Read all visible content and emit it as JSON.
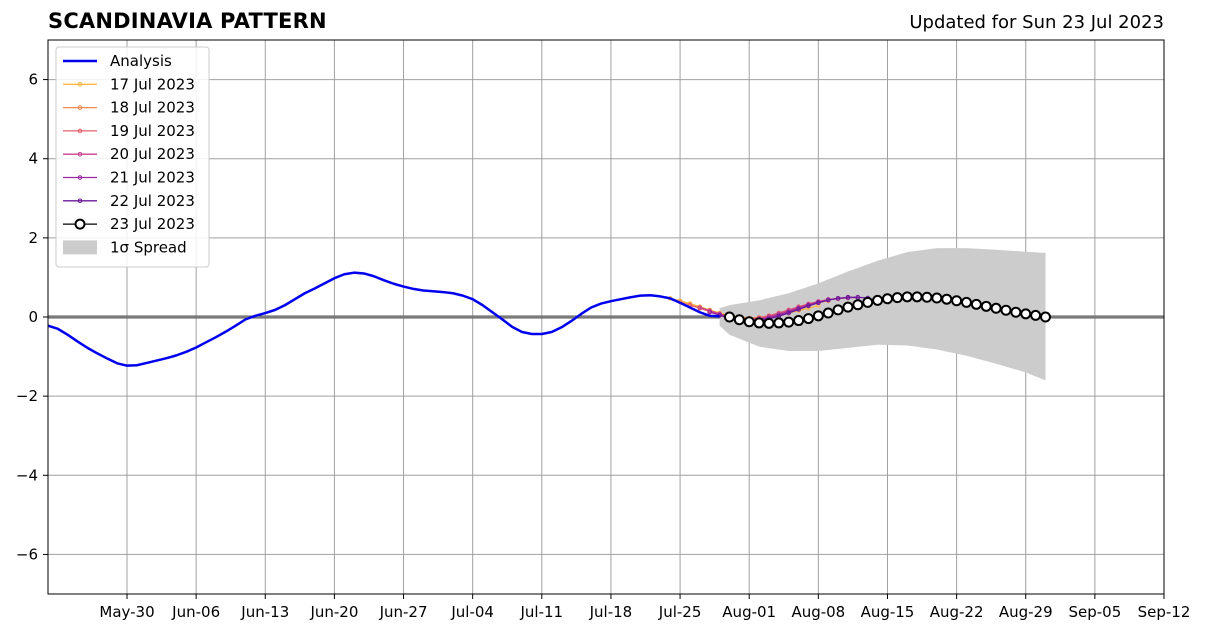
{
  "header": {
    "title": "SCANDINAVIA PATTERN",
    "updated": "Updated for Sun 23 Jul 2023"
  },
  "colors": {
    "analysis": "#0000ee",
    "spread": "#cccccc",
    "grid": "#a0a0a0",
    "zero_line": "#555555",
    "forecasts": [
      "#fdb746",
      "#f4894b",
      "#e3616a",
      "#c8418d",
      "#9a26a0",
      "#6a1a9a",
      "#000000"
    ]
  },
  "chart_data": {
    "type": "line",
    "title": "SCANDINAVIA PATTERN",
    "xlabel": "",
    "ylabel": "",
    "xlim": [
      "2023-05-22",
      "2023-09-12"
    ],
    "ylim": [
      -7,
      7
    ],
    "grid": true,
    "legend_position": "top-left",
    "x_ticks": [
      "May-30",
      "Jun-06",
      "Jun-13",
      "Jun-20",
      "Jun-27",
      "Jul-04",
      "Jul-11",
      "Jul-18",
      "Jul-25",
      "Aug-01",
      "Aug-08",
      "Aug-15",
      "Aug-22",
      "Aug-29",
      "Sep-05",
      "Sep-12"
    ],
    "x_tick_dates": [
      "2023-05-30",
      "2023-06-06",
      "2023-06-13",
      "2023-06-20",
      "2023-06-27",
      "2023-07-04",
      "2023-07-11",
      "2023-07-18",
      "2023-07-25",
      "2023-08-01",
      "2023-08-08",
      "2023-08-15",
      "2023-08-22",
      "2023-08-29",
      "2023-09-05",
      "2023-09-12"
    ],
    "y_ticks": [
      -6,
      -4,
      -2,
      0,
      2,
      4,
      6
    ],
    "y_tick_labels": [
      "−6",
      "−4",
      "−2",
      "0",
      "2",
      "4",
      "6"
    ],
    "analysis": {
      "name": "Analysis",
      "points": [
        [
          "2023-05-22",
          -0.22
        ],
        [
          "2023-05-23",
          -0.3
        ],
        [
          "2023-05-24",
          -0.45
        ],
        [
          "2023-05-25",
          -0.62
        ],
        [
          "2023-05-26",
          -0.78
        ],
        [
          "2023-05-27",
          -0.92
        ],
        [
          "2023-05-28",
          -1.05
        ],
        [
          "2023-05-29",
          -1.17
        ],
        [
          "2023-05-30",
          -1.23
        ],
        [
          "2023-05-31",
          -1.22
        ],
        [
          "2023-06-01",
          -1.16
        ],
        [
          "2023-06-02",
          -1.1
        ],
        [
          "2023-06-03",
          -1.04
        ],
        [
          "2023-06-04",
          -0.97
        ],
        [
          "2023-06-05",
          -0.88
        ],
        [
          "2023-06-06",
          -0.77
        ],
        [
          "2023-06-07",
          -0.64
        ],
        [
          "2023-06-08",
          -0.51
        ],
        [
          "2023-06-09",
          -0.37
        ],
        [
          "2023-06-10",
          -0.22
        ],
        [
          "2023-06-11",
          -0.06
        ],
        [
          "2023-06-12",
          0.03
        ],
        [
          "2023-06-13",
          0.1
        ],
        [
          "2023-06-14",
          0.18
        ],
        [
          "2023-06-15",
          0.3
        ],
        [
          "2023-06-16",
          0.45
        ],
        [
          "2023-06-17",
          0.6
        ],
        [
          "2023-06-18",
          0.72
        ],
        [
          "2023-06-19",
          0.85
        ],
        [
          "2023-06-20",
          0.98
        ],
        [
          "2023-06-21",
          1.08
        ],
        [
          "2023-06-22",
          1.12
        ],
        [
          "2023-06-23",
          1.1
        ],
        [
          "2023-06-24",
          1.03
        ],
        [
          "2023-06-25",
          0.93
        ],
        [
          "2023-06-26",
          0.84
        ],
        [
          "2023-06-27",
          0.77
        ],
        [
          "2023-06-28",
          0.71
        ],
        [
          "2023-06-29",
          0.67
        ],
        [
          "2023-06-30",
          0.65
        ],
        [
          "2023-07-01",
          0.63
        ],
        [
          "2023-07-02",
          0.6
        ],
        [
          "2023-07-03",
          0.54
        ],
        [
          "2023-07-04",
          0.45
        ],
        [
          "2023-07-05",
          0.3
        ],
        [
          "2023-07-06",
          0.12
        ],
        [
          "2023-07-07",
          -0.06
        ],
        [
          "2023-07-08",
          -0.25
        ],
        [
          "2023-07-09",
          -0.38
        ],
        [
          "2023-07-10",
          -0.43
        ],
        [
          "2023-07-11",
          -0.43
        ],
        [
          "2023-07-12",
          -0.38
        ],
        [
          "2023-07-13",
          -0.26
        ],
        [
          "2023-07-14",
          -0.1
        ],
        [
          "2023-07-15",
          0.08
        ],
        [
          "2023-07-16",
          0.24
        ],
        [
          "2023-07-17",
          0.34
        ],
        [
          "2023-07-18",
          0.4
        ],
        [
          "2023-07-19",
          0.45
        ],
        [
          "2023-07-20",
          0.5
        ],
        [
          "2023-07-21",
          0.54
        ],
        [
          "2023-07-22",
          0.55
        ],
        [
          "2023-07-23",
          0.52
        ],
        [
          "2023-07-24",
          0.47
        ],
        [
          "2023-07-25",
          0.36
        ],
        [
          "2023-07-26",
          0.24
        ],
        [
          "2023-07-27",
          0.12
        ],
        [
          "2023-07-28",
          0.03
        ],
        [
          "2023-07-29",
          0.02
        ]
      ]
    },
    "forecasts": [
      {
        "name": "17 Jul 2023",
        "points": [
          [
            "2023-07-24",
            0.47
          ],
          [
            "2023-07-25",
            0.41
          ],
          [
            "2023-07-26",
            0.34
          ],
          [
            "2023-07-27",
            0.26
          ],
          [
            "2023-07-28",
            0.18
          ],
          [
            "2023-07-29",
            0.1
          ],
          [
            "2023-07-30",
            0.04
          ],
          [
            "2023-07-31",
            0.0
          ],
          [
            "2023-08-01",
            -0.03
          ],
          [
            "2023-08-02",
            -0.03
          ],
          [
            "2023-08-03",
            0.0
          ],
          [
            "2023-08-04",
            0.05
          ],
          [
            "2023-08-05",
            0.1
          ],
          [
            "2023-08-06",
            0.16
          ],
          [
            "2023-08-07",
            0.22
          ],
          [
            "2023-08-08",
            0.29
          ]
        ]
      },
      {
        "name": "18 Jul 2023",
        "points": [
          [
            "2023-07-25",
            0.38
          ],
          [
            "2023-07-26",
            0.31
          ],
          [
            "2023-07-27",
            0.23
          ],
          [
            "2023-07-28",
            0.15
          ],
          [
            "2023-07-29",
            0.08
          ],
          [
            "2023-07-30",
            0.02
          ],
          [
            "2023-07-31",
            -0.02
          ],
          [
            "2023-08-01",
            -0.03
          ],
          [
            "2023-08-02",
            -0.01
          ],
          [
            "2023-08-03",
            0.03
          ],
          [
            "2023-08-04",
            0.09
          ],
          [
            "2023-08-05",
            0.16
          ],
          [
            "2023-08-06",
            0.23
          ],
          [
            "2023-08-07",
            0.3
          ],
          [
            "2023-08-08",
            0.36
          ],
          [
            "2023-08-09",
            0.41
          ]
        ]
      },
      {
        "name": "19 Jul 2023",
        "points": [
          [
            "2023-07-26",
            0.3
          ],
          [
            "2023-07-27",
            0.22
          ],
          [
            "2023-07-28",
            0.14
          ],
          [
            "2023-07-29",
            0.06
          ],
          [
            "2023-07-30",
            0.0
          ],
          [
            "2023-07-31",
            -0.04
          ],
          [
            "2023-08-01",
            -0.05
          ],
          [
            "2023-08-02",
            -0.02
          ],
          [
            "2023-08-03",
            0.03
          ],
          [
            "2023-08-04",
            0.1
          ],
          [
            "2023-08-05",
            0.18
          ],
          [
            "2023-08-06",
            0.26
          ],
          [
            "2023-08-07",
            0.33
          ],
          [
            "2023-08-08",
            0.39
          ],
          [
            "2023-08-09",
            0.44
          ],
          [
            "2023-08-10",
            0.46
          ]
        ]
      },
      {
        "name": "20 Jul 2023",
        "points": [
          [
            "2023-07-27",
            0.24
          ],
          [
            "2023-07-28",
            0.16
          ],
          [
            "2023-07-29",
            0.08
          ],
          [
            "2023-07-30",
            0.01
          ],
          [
            "2023-07-31",
            -0.04
          ],
          [
            "2023-08-01",
            -0.06
          ],
          [
            "2023-08-02",
            -0.04
          ],
          [
            "2023-08-03",
            0.01
          ],
          [
            "2023-08-04",
            0.08
          ],
          [
            "2023-08-05",
            0.16
          ],
          [
            "2023-08-06",
            0.24
          ],
          [
            "2023-08-07",
            0.32
          ],
          [
            "2023-08-08",
            0.39
          ],
          [
            "2023-08-09",
            0.44
          ],
          [
            "2023-08-10",
            0.47
          ],
          [
            "2023-08-11",
            0.48
          ]
        ]
      },
      {
        "name": "21 Jul 2023",
        "points": [
          [
            "2023-07-28",
            0.12
          ],
          [
            "2023-07-29",
            0.05
          ],
          [
            "2023-07-30",
            -0.01
          ],
          [
            "2023-07-31",
            -0.06
          ],
          [
            "2023-08-01",
            -0.08
          ],
          [
            "2023-08-02",
            -0.06
          ],
          [
            "2023-08-03",
            -0.02
          ],
          [
            "2023-08-04",
            0.05
          ],
          [
            "2023-08-05",
            0.13
          ],
          [
            "2023-08-06",
            0.22
          ],
          [
            "2023-08-07",
            0.3
          ],
          [
            "2023-08-08",
            0.37
          ],
          [
            "2023-08-09",
            0.43
          ],
          [
            "2023-08-10",
            0.47
          ],
          [
            "2023-08-11",
            0.49
          ],
          [
            "2023-08-12",
            0.49
          ]
        ]
      },
      {
        "name": "22 Jul 2023",
        "points": [
          [
            "2023-07-29",
            0.04
          ],
          [
            "2023-07-30",
            -0.03
          ],
          [
            "2023-07-31",
            -0.08
          ],
          [
            "2023-08-01",
            -0.1
          ],
          [
            "2023-08-02",
            -0.09
          ],
          [
            "2023-08-03",
            -0.05
          ],
          [
            "2023-08-04",
            0.02
          ],
          [
            "2023-08-05",
            0.1
          ],
          [
            "2023-08-06",
            0.19
          ],
          [
            "2023-08-07",
            0.28
          ],
          [
            "2023-08-08",
            0.36
          ],
          [
            "2023-08-09",
            0.43
          ],
          [
            "2023-08-10",
            0.47
          ],
          [
            "2023-08-11",
            0.5
          ],
          [
            "2023-08-12",
            0.5
          ],
          [
            "2023-08-13",
            0.48
          ]
        ]
      },
      {
        "name": "23 Jul 2023",
        "points": [
          [
            "2023-07-30",
            0.0
          ],
          [
            "2023-07-31",
            -0.07
          ],
          [
            "2023-08-01",
            -0.12
          ],
          [
            "2023-08-02",
            -0.15
          ],
          [
            "2023-08-03",
            -0.16
          ],
          [
            "2023-08-04",
            -0.15
          ],
          [
            "2023-08-05",
            -0.13
          ],
          [
            "2023-08-06",
            -0.09
          ],
          [
            "2023-08-07",
            -0.04
          ],
          [
            "2023-08-08",
            0.03
          ],
          [
            "2023-08-09",
            0.1
          ],
          [
            "2023-08-10",
            0.18
          ],
          [
            "2023-08-11",
            0.25
          ],
          [
            "2023-08-12",
            0.31
          ],
          [
            "2023-08-13",
            0.37
          ],
          [
            "2023-08-14",
            0.42
          ],
          [
            "2023-08-15",
            0.46
          ],
          [
            "2023-08-16",
            0.49
          ],
          [
            "2023-08-17",
            0.51
          ],
          [
            "2023-08-18",
            0.51
          ],
          [
            "2023-08-19",
            0.5
          ],
          [
            "2023-08-20",
            0.48
          ],
          [
            "2023-08-21",
            0.45
          ],
          [
            "2023-08-22",
            0.41
          ],
          [
            "2023-08-23",
            0.37
          ],
          [
            "2023-08-24",
            0.32
          ],
          [
            "2023-08-25",
            0.27
          ],
          [
            "2023-08-26",
            0.22
          ],
          [
            "2023-08-27",
            0.17
          ],
          [
            "2023-08-28",
            0.12
          ],
          [
            "2023-08-29",
            0.08
          ],
          [
            "2023-08-30",
            0.04
          ],
          [
            "2023-08-31",
            0.0
          ]
        ]
      }
    ],
    "spread": {
      "name": "1σ Spread",
      "x": [
        "2023-07-29",
        "2023-07-30",
        "2023-08-02",
        "2023-08-05",
        "2023-08-08",
        "2023-08-11",
        "2023-08-14",
        "2023-08-17",
        "2023-08-20",
        "2023-08-23",
        "2023-08-26",
        "2023-08-29",
        "2023-08-31"
      ],
      "upper": [
        0.22,
        0.3,
        0.42,
        0.6,
        0.85,
        1.15,
        1.42,
        1.64,
        1.74,
        1.74,
        1.7,
        1.65,
        1.62
      ],
      "lower": [
        -0.22,
        -0.45,
        -0.75,
        -0.86,
        -0.86,
        -0.78,
        -0.7,
        -0.72,
        -0.82,
        -0.98,
        -1.18,
        -1.4,
        -1.6
      ]
    },
    "legend": [
      "Analysis",
      "17 Jul 2023",
      "18 Jul 2023",
      "19 Jul 2023",
      "20 Jul 2023",
      "21 Jul 2023",
      "22 Jul 2023",
      "23 Jul 2023",
      "1σ Spread"
    ]
  }
}
